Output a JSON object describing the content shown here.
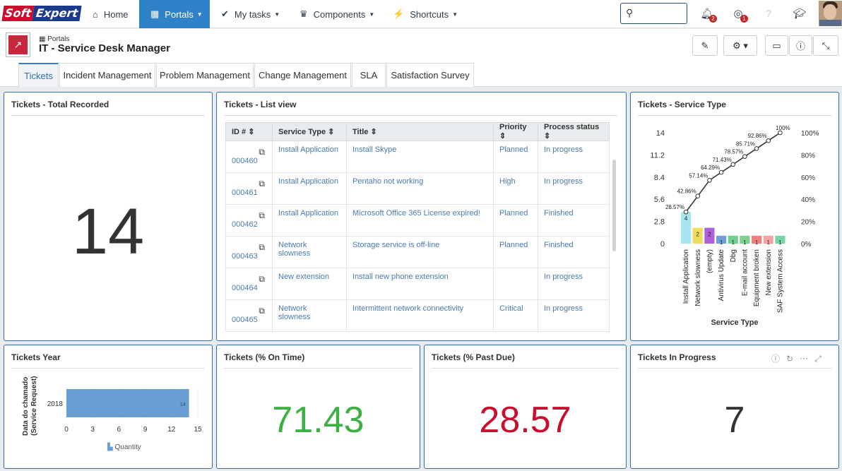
{
  "brand": {
    "part1": "Soft",
    "part2": "Expert"
  },
  "nav": {
    "home": "Home",
    "portals": "Portals",
    "mytasks": "My tasks",
    "components": "Components",
    "shortcuts": "Shortcuts"
  },
  "notifications": {
    "bell": "2",
    "tasks": "1"
  },
  "page": {
    "breadcrumb": "Portals",
    "title": "IT - Service Desk Manager"
  },
  "tabs": [
    "Tickets",
    "Incident Management",
    "Problem Management",
    "Change Management",
    "SLA",
    "Satisfaction Survey"
  ],
  "total": {
    "title": "Tickets - Total Recorded",
    "value": "14"
  },
  "list": {
    "title": "Tickets - List view",
    "columns": [
      "ID #",
      "Service Type",
      "Title",
      "Priority",
      "Process status"
    ],
    "rows": [
      {
        "id": "000460",
        "type": "Install Application",
        "title": "Install Skype",
        "priority": "Planned",
        "status": "In progress"
      },
      {
        "id": "000461",
        "type": "Install Application",
        "title": "Pentaho not working",
        "priority": "High",
        "status": "In progress"
      },
      {
        "id": "000462",
        "type": "Install Application",
        "title": "Microsoft Office 365 License expired!",
        "priority": "Planned",
        "status": "Finished"
      },
      {
        "id": "000463",
        "type": "Network slowness",
        "title": "Storage service is off-line",
        "priority": "Planned",
        "status": "Finished"
      },
      {
        "id": "000464",
        "type": "New extension",
        "title": "Install new phone extension",
        "priority": "",
        "status": "In progress"
      },
      {
        "id": "000465",
        "type": "Network slowness",
        "title": "Intermittent network connectivity",
        "priority": "Critical",
        "status": "In progress"
      }
    ]
  },
  "service": {
    "title": "Tickets - Service Type",
    "xlabel": "Service Type"
  },
  "year": {
    "title": "Tickets   Year",
    "ylabel1": "Data do chamado",
    "ylabel2": "(Service Request)",
    "legend": "Quantity"
  },
  "ontime": {
    "title": "Tickets   (% On Time)",
    "value": "71.43",
    "color": "#3cb043"
  },
  "pastdue": {
    "title": "Tickets   (% Past Due)",
    "value": "28.57",
    "color": "#c8102e"
  },
  "inprogress": {
    "title": "Tickets   In Progress",
    "value": "7"
  },
  "chart_data": [
    {
      "type": "bar",
      "title": "Tickets - Service Type",
      "xlabel": "Service Type",
      "ylim": [
        0,
        14
      ],
      "yticks": [
        "14",
        "11.2",
        "8.4",
        "5.6",
        "2.8",
        "0"
      ],
      "y2ticks": [
        "100%",
        "80%",
        "60%",
        "40%",
        "20%",
        "0%"
      ],
      "categories": [
        "Install Application",
        "Network slowness",
        "(empty)",
        "Antivirus Update",
        "Dbg",
        "E-mail account",
        "Equipment broken",
        "New extension",
        "SAF System Access"
      ],
      "values": [
        4,
        2,
        2,
        1,
        1,
        1,
        1,
        1,
        1
      ],
      "colors": [
        "#a8e6ef",
        "#f2dc5d",
        "#b05fd6",
        "#6f9fd8",
        "#6fcf97",
        "#7ed08f",
        "#f08080",
        "#f4a3a3",
        "#78d6a6"
      ],
      "series": [
        {
          "name": "Cumulative %",
          "values": [
            28.57,
            42.86,
            57.14,
            64.29,
            71.43,
            78.57,
            85.71,
            92.86,
            100
          ],
          "labels": [
            "28.57%",
            "42.86%",
            "57.14%",
            "64.29%",
            "71.43%",
            "78.57%",
            "85.71%",
            "92.86%",
            "100%"
          ]
        }
      ]
    },
    {
      "type": "bar",
      "orientation": "horizontal",
      "title": "Tickets   Year",
      "categories": [
        "2018"
      ],
      "values": [
        14
      ],
      "xlim": [
        0,
        15
      ],
      "xticks": [
        "0",
        "3",
        "6",
        "9",
        "12",
        "15"
      ],
      "ylabel": "Data do chamado (Service Request)",
      "legend": "Quantity"
    }
  ]
}
